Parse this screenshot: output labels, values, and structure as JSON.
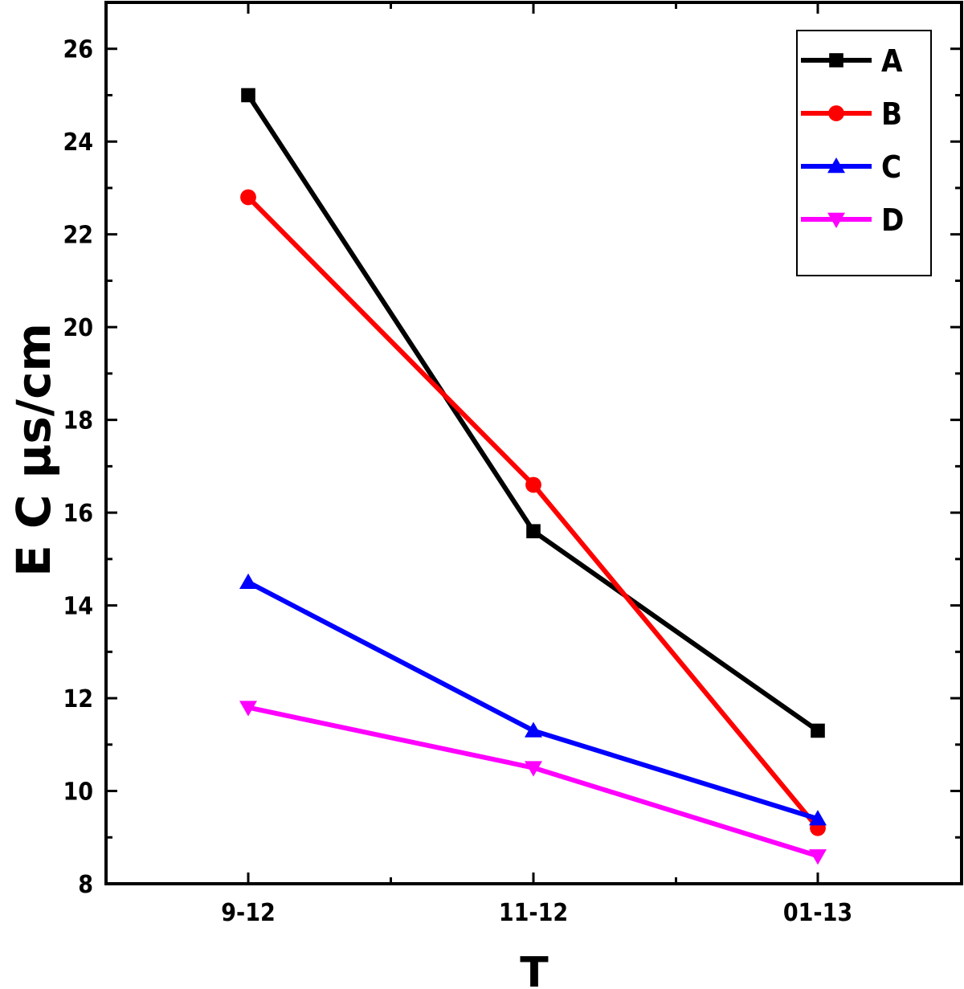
{
  "chart_data": {
    "type": "line",
    "title": "",
    "xlabel": "T",
    "ylabel": "E C  μs/cm",
    "categories": [
      "9-12",
      "11-12",
      "01-13"
    ],
    "ylim": [
      8,
      27
    ],
    "yticks": [
      8,
      10,
      12,
      14,
      16,
      18,
      20,
      22,
      24,
      26
    ],
    "grid": false,
    "legend_position": "top-right",
    "series": [
      {
        "name": "A",
        "color": "#000000",
        "marker": "square",
        "values": [
          25.0,
          15.6,
          11.3
        ]
      },
      {
        "name": "B",
        "color": "#ff0000",
        "marker": "circle",
        "values": [
          22.8,
          16.6,
          9.2
        ]
      },
      {
        "name": "C",
        "color": "#0000ff",
        "marker": "triangle-up",
        "values": [
          14.5,
          11.3,
          9.4
        ]
      },
      {
        "name": "D",
        "color": "#ff00ff",
        "marker": "triangle-down",
        "values": [
          11.8,
          10.5,
          8.6
        ]
      }
    ]
  }
}
